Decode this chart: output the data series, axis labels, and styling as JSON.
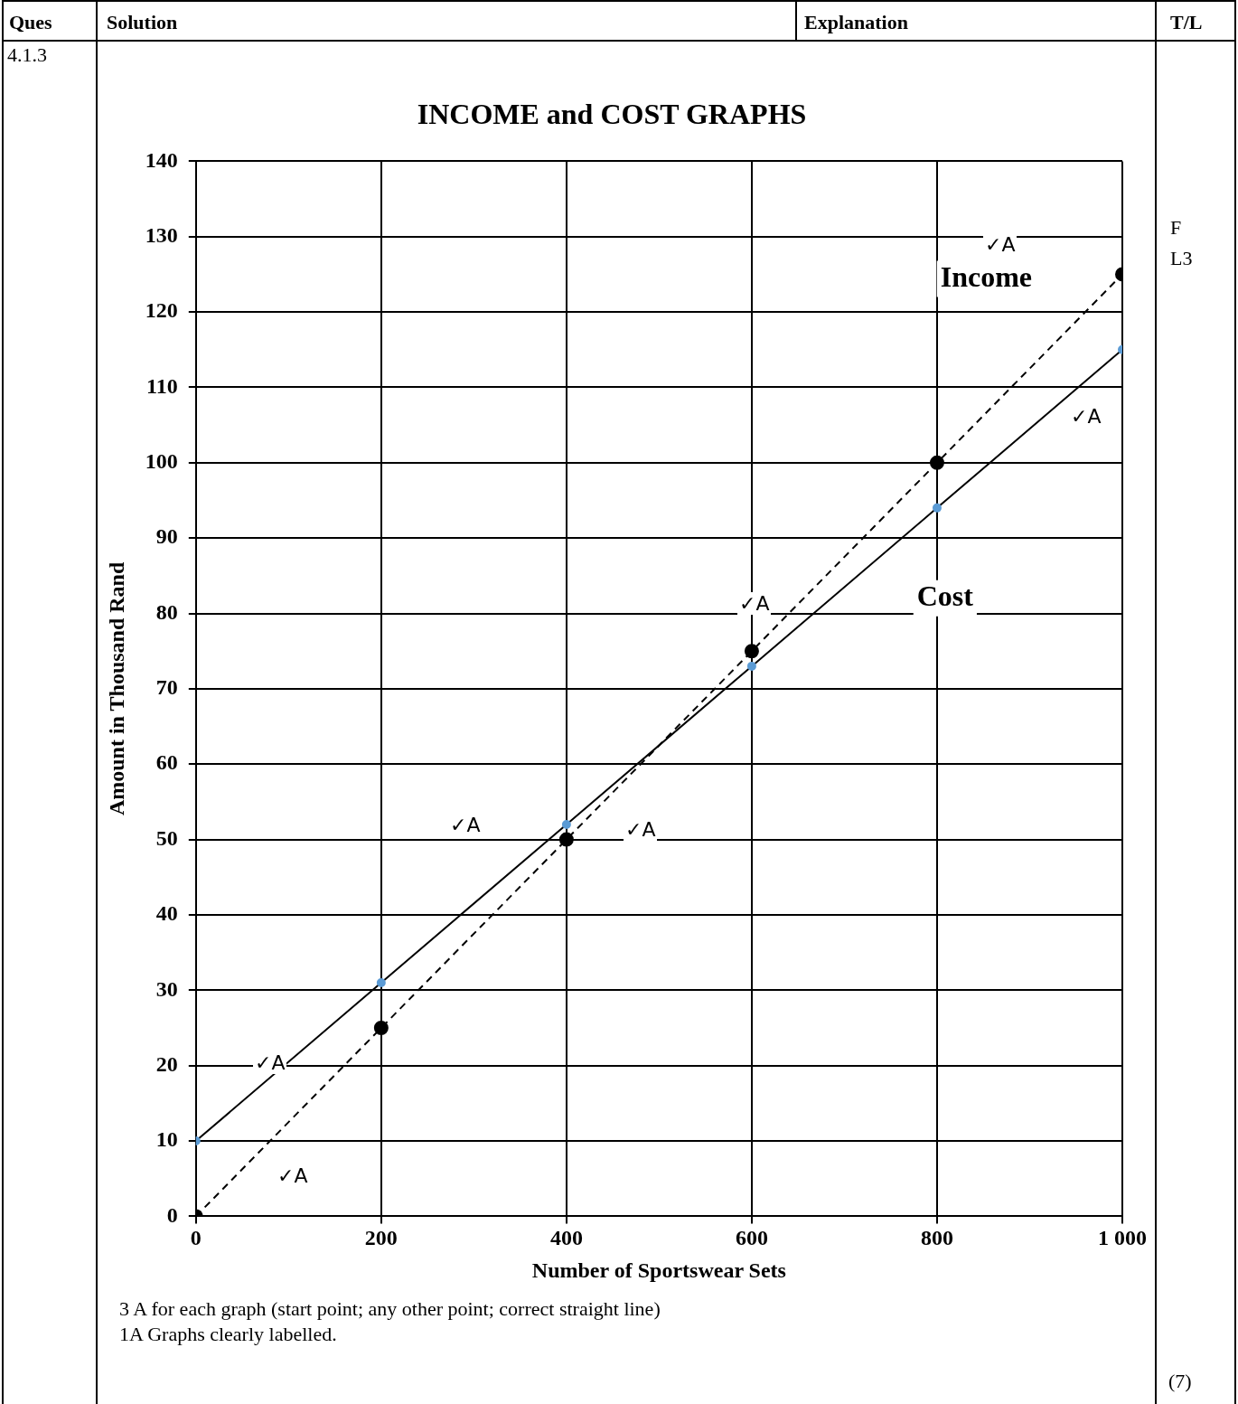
{
  "chart_data": {
    "type": "line",
    "title": "INCOME and COST GRAPHS",
    "xlabel": "Number of Sportswear Sets",
    "ylabel": "Amount in Thousand Rand",
    "x": [
      0,
      200,
      400,
      600,
      800,
      1000
    ],
    "series": [
      {
        "name": "Income",
        "color": "#000000",
        "values": [
          0,
          25,
          50,
          75,
          100,
          125
        ],
        "line_style": "dashed",
        "marker": "circle"
      },
      {
        "name": "Cost",
        "color": "#000000",
        "values": [
          10,
          31,
          52,
          73,
          94,
          115
        ],
        "line_style": "solid",
        "marker": "circle"
      }
    ],
    "xlim": [
      0,
      1000
    ],
    "xticks": [
      0,
      200,
      400,
      600,
      800,
      {
        "value": 1000,
        "label": "1 000"
      }
    ],
    "ylim": [
      0,
      140
    ],
    "yticks": [
      0,
      10,
      20,
      30,
      40,
      50,
      60,
      70,
      80,
      90,
      100,
      110,
      120,
      130,
      140
    ],
    "grid": true,
    "legend": false,
    "annotations": [
      "Ques",
      "Solution",
      "Explanation",
      "T/L",
      "4.1.3",
      "F\nL3",
      "(7)",
      "3 A for each graph (start point; any other point; correct straight line)\n1A Graphs clearly labelled.",
      "✓A",
      "✓A",
      "✓A",
      "✓A",
      "✓A",
      "✓A",
      "✓A"
    ]
  }
}
